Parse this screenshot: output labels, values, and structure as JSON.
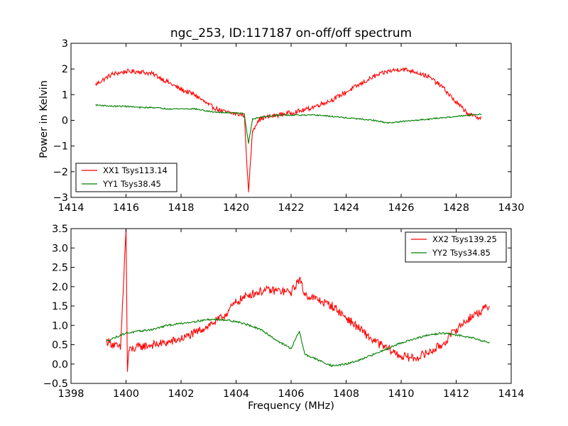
{
  "figure": {
    "title": "ngc_253, ID:117187 on-off/off spectrum",
    "xlabel": "Frequency (MHz)",
    "ylabel": "Power in Kelvin"
  },
  "colors": {
    "xx": "#ff0000",
    "yy": "#008000"
  },
  "chart_data": [
    {
      "type": "line",
      "title": "ngc_253, ID:117187 on-off/off spectrum",
      "ylabel": "Power in Kelvin",
      "xlabel": "",
      "xlim": [
        1414,
        1430
      ],
      "ylim": [
        -3,
        3
      ],
      "xticks": [
        1414,
        1416,
        1418,
        1420,
        1422,
        1424,
        1426,
        1428,
        1430
      ],
      "yticks": [
        3,
        2,
        1,
        0,
        -1,
        -2,
        -3
      ],
      "ytick_labels": [
        "3",
        "2",
        "1",
        "0",
        "−1",
        "−2",
        "−3"
      ],
      "grid": false,
      "legend": "lower-left",
      "series": [
        {
          "name": "XX1 Tsys113.14",
          "color": "#ff0000",
          "x": [
            1414.9,
            1415.5,
            1416.0,
            1416.5,
            1417.0,
            1417.5,
            1418.0,
            1418.5,
            1419.0,
            1419.5,
            1420.0,
            1420.3,
            1420.45,
            1420.6,
            1420.8,
            1421.0,
            1421.5,
            1422.0,
            1422.5,
            1423.0,
            1423.5,
            1424.0,
            1424.5,
            1425.0,
            1425.5,
            1426.0,
            1426.5,
            1427.0,
            1427.5,
            1428.0,
            1428.5,
            1428.9
          ],
          "y": [
            1.4,
            1.8,
            1.9,
            1.9,
            1.8,
            1.5,
            1.2,
            1.0,
            0.6,
            0.35,
            0.25,
            0.2,
            -2.8,
            -0.4,
            0.0,
            0.1,
            0.2,
            0.3,
            0.4,
            0.6,
            0.8,
            1.1,
            1.4,
            1.7,
            1.9,
            2.0,
            1.9,
            1.7,
            1.3,
            0.7,
            0.2,
            0.1
          ]
        },
        {
          "name": "YY1 Tsys38.45",
          "color": "#008000",
          "x": [
            1414.9,
            1415.5,
            1416.0,
            1416.5,
            1417.0,
            1417.5,
            1418.0,
            1418.5,
            1419.0,
            1419.5,
            1420.0,
            1420.3,
            1420.45,
            1420.6,
            1421.0,
            1421.5,
            1422.0,
            1422.5,
            1423.0,
            1423.5,
            1424.0,
            1424.5,
            1425.0,
            1425.5,
            1426.0,
            1426.5,
            1427.0,
            1427.5,
            1428.0,
            1428.5,
            1428.9
          ],
          "y": [
            0.6,
            0.55,
            0.55,
            0.5,
            0.5,
            0.45,
            0.45,
            0.45,
            0.35,
            0.3,
            0.3,
            0.25,
            -0.9,
            0.05,
            0.15,
            0.2,
            0.2,
            0.2,
            0.2,
            0.15,
            0.1,
            0.05,
            0.0,
            -0.1,
            -0.05,
            0.0,
            0.05,
            0.1,
            0.15,
            0.2,
            0.25
          ]
        }
      ]
    },
    {
      "type": "line",
      "title": "",
      "xlabel": "Frequency (MHz)",
      "ylabel": "",
      "xlim": [
        1398,
        1414
      ],
      "ylim": [
        -0.5,
        3.5
      ],
      "xticks": [
        1398,
        1400,
        1402,
        1404,
        1406,
        1408,
        1410,
        1412,
        1414
      ],
      "yticks": [
        3.5,
        3.0,
        2.5,
        2.0,
        1.5,
        1.0,
        0.5,
        0.0,
        -0.5
      ],
      "ytick_labels": [
        "3.5",
        "3.0",
        "2.5",
        "2.0",
        "1.5",
        "1.0",
        "0.5",
        "0.0",
        "−0.5"
      ],
      "grid": false,
      "legend": "top-right",
      "series": [
        {
          "name": "XX2 Tsys139.25",
          "color": "#ff0000",
          "x": [
            1399.3,
            1399.8,
            1400.0,
            1400.05,
            1400.1,
            1400.5,
            1401.0,
            1401.5,
            1402.0,
            1402.5,
            1403.0,
            1403.5,
            1404.0,
            1404.5,
            1405.0,
            1405.5,
            1406.0,
            1406.3,
            1406.5,
            1407.0,
            1407.5,
            1408.0,
            1408.5,
            1409.0,
            1409.5,
            1410.0,
            1410.5,
            1411.0,
            1411.5,
            1412.0,
            1412.5,
            1413.2
          ],
          "y": [
            0.6,
            0.4,
            3.5,
            -0.2,
            0.35,
            0.45,
            0.5,
            0.55,
            0.65,
            0.8,
            1.0,
            1.2,
            1.6,
            1.8,
            1.9,
            1.9,
            1.85,
            2.2,
            1.8,
            1.65,
            1.5,
            1.2,
            0.9,
            0.6,
            0.4,
            0.2,
            0.15,
            0.3,
            0.5,
            0.9,
            1.2,
            1.5
          ]
        },
        {
          "name": "YY2 Tsys34.85",
          "color": "#008000",
          "x": [
            1399.3,
            1400.0,
            1400.5,
            1401.0,
            1401.5,
            1402.0,
            1402.5,
            1403.0,
            1403.5,
            1404.0,
            1404.5,
            1405.0,
            1405.5,
            1406.0,
            1406.3,
            1406.5,
            1407.0,
            1407.5,
            1408.0,
            1408.5,
            1409.0,
            1409.5,
            1410.0,
            1410.5,
            1411.0,
            1411.5,
            1412.0,
            1412.5,
            1413.2
          ],
          "y": [
            0.6,
            0.8,
            0.85,
            0.9,
            1.0,
            1.05,
            1.1,
            1.15,
            1.15,
            1.1,
            1.0,
            0.85,
            0.6,
            0.4,
            0.85,
            0.25,
            0.1,
            -0.05,
            0.0,
            0.1,
            0.25,
            0.4,
            0.55,
            0.65,
            0.75,
            0.8,
            0.75,
            0.7,
            0.55
          ]
        }
      ]
    }
  ]
}
